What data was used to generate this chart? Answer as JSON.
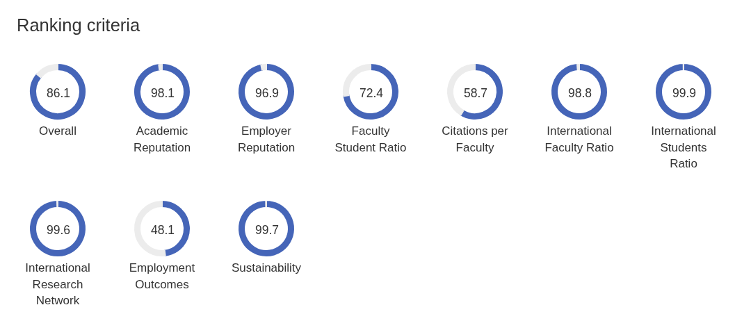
{
  "chart_data": [
    {
      "type": "other",
      "title": "Ranking criteria"
    },
    {
      "type": "donut",
      "title": "Overall",
      "categories": [
        null,
        null
      ],
      "values": [
        86.1,
        13.9
      ],
      "colors": [
        "#4565b8",
        "#ececec"
      ],
      "value_labels": [
        "86.1",
        null
      ]
    },
    {
      "type": "donut",
      "title": "Academic Reputation",
      "categories": [
        null,
        null
      ],
      "values": [
        98.1,
        1.9
      ],
      "colors": [
        "#4565b8",
        "#ececec"
      ],
      "value_labels": [
        "98.1",
        null
      ]
    },
    {
      "type": "donut",
      "title": "Employer Reputation",
      "categories": [
        null,
        null
      ],
      "values": [
        96.9,
        3.1
      ],
      "colors": [
        "#4565b8",
        "#ececec"
      ],
      "value_labels": [
        "96.9",
        null
      ]
    },
    {
      "type": "donut",
      "title": "Faculty Student Ratio",
      "categories": [
        null,
        null
      ],
      "values": [
        72.4,
        27.6
      ],
      "colors": [
        "#4565b8",
        "#ececec"
      ],
      "value_labels": [
        "72.4",
        null
      ]
    },
    {
      "type": "donut",
      "title": "Citations per Faculty",
      "categories": [
        null,
        null
      ],
      "values": [
        58.7,
        41.3
      ],
      "colors": [
        "#4565b8",
        "#ececec"
      ],
      "value_labels": [
        "58.7",
        null
      ]
    },
    {
      "type": "donut",
      "title": "International Faculty Ratio",
      "categories": [
        null,
        null
      ],
      "values": [
        98.8,
        1.2
      ],
      "colors": [
        "#4565b8",
        "#ececec"
      ],
      "value_labels": [
        "98.8",
        null
      ]
    },
    {
      "type": "donut",
      "title": "International Students Ratio",
      "categories": [
        null,
        null
      ],
      "values": [
        99.9,
        0.1
      ],
      "colors": [
        "#4565b8",
        "#ececec"
      ],
      "value_labels": [
        "99.9",
        null
      ]
    },
    {
      "type": "donut",
      "title": "International Research Network",
      "categories": [
        null,
        null
      ],
      "values": [
        99.6,
        0.4
      ],
      "colors": [
        "#4565b8",
        "#ececec"
      ],
      "value_labels": [
        "99.6",
        null
      ]
    },
    {
      "type": "donut",
      "title": "Employment Outcomes",
      "categories": [
        null,
        null
      ],
      "values": [
        48.1,
        51.9
      ],
      "colors": [
        "#4565b8",
        "#ececec"
      ],
      "value_labels": [
        "48.1",
        null
      ]
    },
    {
      "type": "donut",
      "title": "Sustainability",
      "categories": [
        null,
        null
      ],
      "values": [
        99.7,
        0.3
      ],
      "colors": [
        "#4565b8",
        "#ececec"
      ],
      "value_labels": [
        "99.7",
        null
      ]
    }
  ]
}
